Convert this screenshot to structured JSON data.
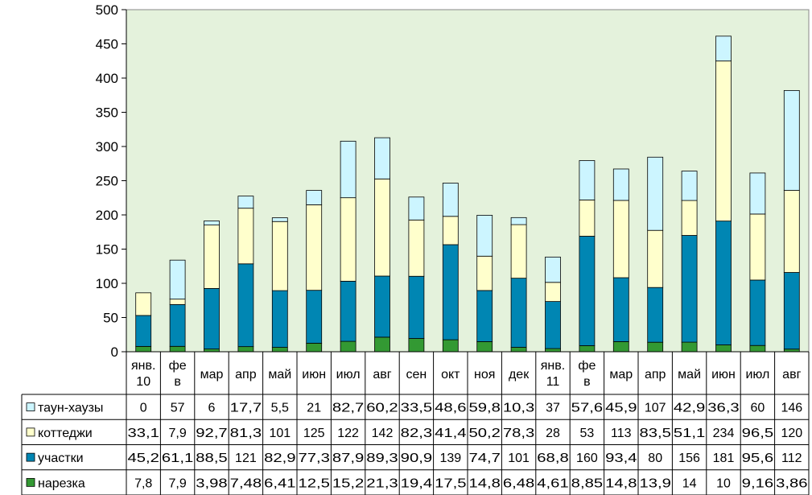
{
  "chart_data": {
    "type": "bar",
    "stacked": true,
    "title": "",
    "xlabel": "",
    "ylabel": "",
    "ylim": [
      0,
      500
    ],
    "yticks": [
      0,
      50,
      100,
      150,
      200,
      250,
      300,
      350,
      400,
      450,
      500
    ],
    "grid": false,
    "legend": "data-table-below",
    "categories": [
      [
        "янв.",
        "10"
      ],
      [
        "фе",
        "в"
      ],
      [
        "мар"
      ],
      [
        "апр"
      ],
      [
        "май"
      ],
      [
        "июн"
      ],
      [
        "июл"
      ],
      [
        "авг"
      ],
      [
        "сен"
      ],
      [
        "окт"
      ],
      [
        "ноя"
      ],
      [
        "дек"
      ],
      [
        "янв.",
        "11"
      ],
      [
        "фе",
        "в"
      ],
      [
        "мар"
      ],
      [
        "апр"
      ],
      [
        "май"
      ],
      [
        "июн"
      ],
      [
        "июл"
      ],
      [
        "авг"
      ]
    ],
    "series": [
      {
        "name": "нарезка",
        "color": "#339933",
        "values": [
          7.8,
          7.9,
          3.98,
          7.48,
          6.41,
          12.5,
          15.2,
          21.3,
          19.4,
          17.5,
          14.8,
          6.48,
          4.61,
          8.85,
          14.8,
          13.9,
          14,
          10,
          9.16,
          3.86
        ],
        "labels": [
          "7,8",
          "7,9",
          "3,98",
          "7,48",
          "6,41",
          "12,5",
          "15,2",
          "21,3",
          "19,4",
          "17,5",
          "14,8",
          "6,48",
          "4,61",
          "8,85",
          "14,8",
          "13,9",
          "14",
          "10",
          "9,16",
          "3,86"
        ]
      },
      {
        "name": "участки",
        "color": "#0086b3",
        "values": [
          45.2,
          61.1,
          88.5,
          121,
          82.9,
          77.3,
          87.9,
          89.3,
          90.9,
          139,
          74.7,
          101,
          68.8,
          160,
          93.4,
          80,
          156,
          181,
          95.6,
          112
        ],
        "labels": [
          "45,2",
          "61,1",
          "88,5",
          "121",
          "82,9",
          "77,3",
          "87,9",
          "89,3",
          "90,9",
          "139",
          "74,7",
          "101",
          "68,8",
          "160",
          "93,4",
          "80",
          "156",
          "181",
          "95,6",
          "112"
        ]
      },
      {
        "name": "коттеджи",
        "color": "#ffffcc",
        "values": [
          33.1,
          7.9,
          92.7,
          81.3,
          101,
          125,
          122,
          142,
          82.3,
          41.4,
          50.2,
          78.3,
          28,
          53,
          113,
          83.5,
          51.1,
          234,
          96.5,
          120
        ],
        "labels": [
          "33,1",
          "7,9",
          "92,7",
          "81,3",
          "101",
          "125",
          "122",
          "142",
          "82,3",
          "41,4",
          "50,2",
          "78,3",
          "28",
          "53",
          "113",
          "83,5",
          "51,1",
          "234",
          "96,5",
          "120"
        ]
      },
      {
        "name": "таун-хаузы",
        "color": "#ccf5ff",
        "values": [
          0,
          57,
          6,
          17.7,
          5.5,
          21,
          82.7,
          60.2,
          33.5,
          48.6,
          59.8,
          10.3,
          37,
          57.6,
          45.9,
          107,
          42.9,
          36.3,
          60,
          146
        ],
        "labels": [
          "0",
          "57",
          "6",
          "17,7",
          "5,5",
          "21",
          "82,7",
          "60,2",
          "33,5",
          "48,6",
          "59,8",
          "10,3",
          "37",
          "57,6",
          "45,9",
          "107",
          "42,9",
          "36,3",
          "60",
          "146"
        ]
      }
    ],
    "plot_background": "#e4f2dc"
  }
}
